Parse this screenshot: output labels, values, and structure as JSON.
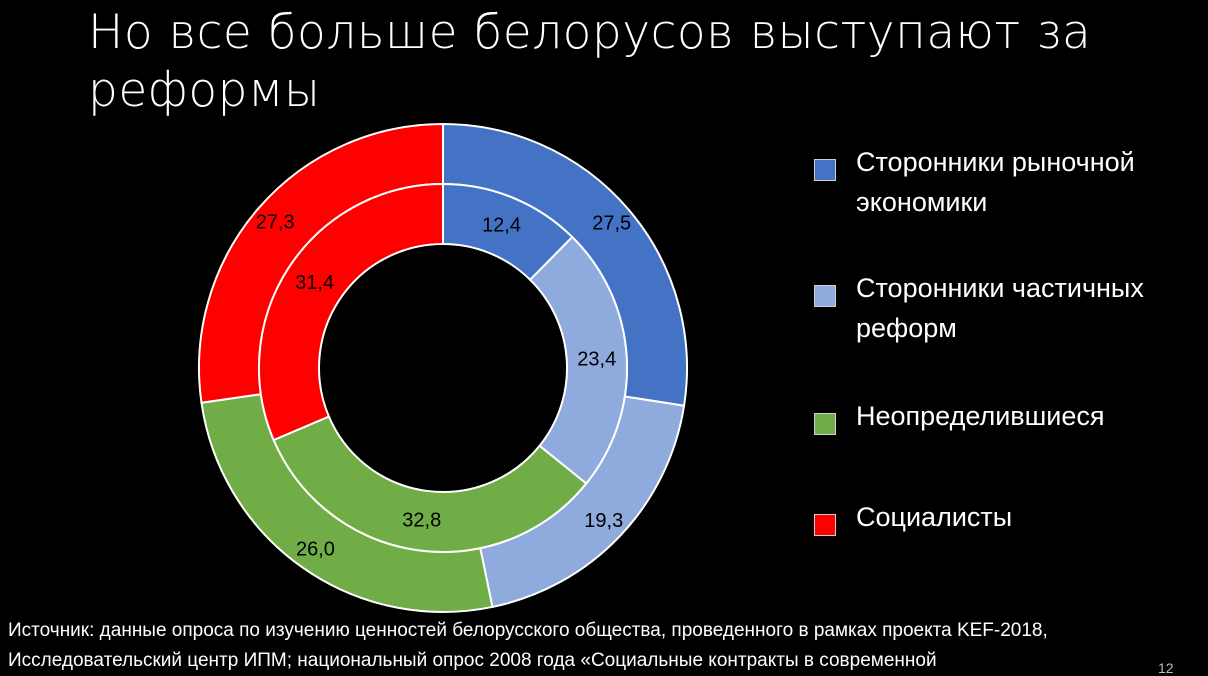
{
  "title": "Но все больше белорусов выступают за реформы",
  "chart_data": {
    "type": "donut",
    "categories": [
      "Сторонники рыночной экономики",
      "Сторонники частичных реформ",
      "Неопределившиеся",
      "Социалисты"
    ],
    "colors": [
      "#4472C4",
      "#8FAADC",
      "#70AD47",
      "#FF0000"
    ],
    "series": [
      {
        "ring": "outer",
        "values": [
          27.5,
          19.3,
          26.0,
          27.3
        ],
        "labels": [
          "27,5",
          "19,3",
          "26,0",
          "27,3"
        ]
      },
      {
        "ring": "inner",
        "values": [
          12.4,
          23.4,
          32.8,
          31.4
        ],
        "labels": [
          "12,4",
          "23,4",
          "32,8",
          "31,4"
        ]
      }
    ],
    "legend_position": "right"
  },
  "legend": [
    {
      "label": "Сторонники рыночной экономики",
      "color": "#4472C4"
    },
    {
      "label": "Сторонники частичных реформ",
      "color": "#8FAADC"
    },
    {
      "label": "Неопределившиеся",
      "color": "#70AD47"
    },
    {
      "label": "Социалисты",
      "color": "#FF0000"
    }
  ],
  "source": "Источник: данные опроса по изучению ценностей белорусского общества, проведенного в рамках проекта KEF-2018, Исследовательский центр ИПМ; национальный опрос 2008 года «Социальные контракты в современной",
  "page_number": "12"
}
